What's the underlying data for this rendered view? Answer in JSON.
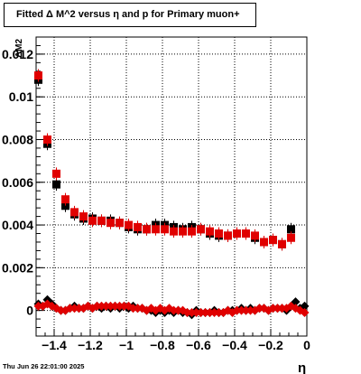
{
  "chart_data": {
    "type": "scatter",
    "title": "Fitted Δ M^2 versus η and p for Primary muon+",
    "xlabel": "η",
    "ylabel": "ΔM2",
    "xlim": [
      -1.5,
      0
    ],
    "ylim": [
      -0.0012,
      0.0128
    ],
    "x_ticks": [
      -1.4,
      -1.2,
      -1,
      -0.8,
      -0.6,
      -0.4,
      -0.2,
      0
    ],
    "x_tick_labels": [
      "−1.4",
      "−1.2",
      "−1",
      "−0.8",
      "−0.6",
      "−0.4",
      "−0.2",
      "0"
    ],
    "y_ticks": [
      0,
      0.002,
      0.004,
      0.006,
      0.008,
      0.01,
      0.012
    ],
    "y_tick_labels": [
      "0",
      "0.002",
      "0.004",
      "0.006",
      "0.008",
      "0.01",
      "0.012"
    ],
    "grid": true,
    "x": [
      -1.4875,
      -1.4625,
      -1.4375,
      -1.4125,
      -1.3875,
      -1.3625,
      -1.3375,
      -1.3125,
      -1.2875,
      -1.2625,
      -1.2375,
      -1.2125,
      -1.1875,
      -1.1625,
      -1.1375,
      -1.1125,
      -1.0875,
      -1.0625,
      -1.0375,
      -1.0125,
      -0.9875,
      -0.9625,
      -0.9375,
      -0.9125,
      -0.8875,
      -0.8625,
      -0.8375,
      -0.8125,
      -0.7875,
      -0.7625,
      -0.7375,
      -0.7125,
      -0.6875,
      -0.6625,
      -0.6375,
      -0.6125,
      -0.5875,
      -0.5625,
      -0.5375,
      -0.5125,
      -0.4875,
      -0.4625,
      -0.4375,
      -0.4125,
      -0.3875,
      -0.3625,
      -0.3375,
      -0.3125,
      -0.2875,
      -0.2625,
      -0.2375,
      -0.2125,
      -0.1875,
      -0.1625,
      -0.1375,
      -0.1125,
      -0.0875,
      -0.0625,
      -0.0375,
      -0.0125
    ],
    "series": [
      {
        "marker": "square",
        "color": "#000000",
        "y": [
          0.0108,
          null,
          0.0078,
          null,
          0.0059,
          null,
          0.0049,
          null,
          0.0045,
          null,
          0.0043,
          null,
          0.0043,
          null,
          0.0042,
          null,
          0.0042,
          null,
          0.0041,
          null,
          0.0039,
          null,
          0.0038,
          null,
          0.0038,
          null,
          0.004,
          null,
          0.004,
          null,
          0.0039,
          null,
          0.0038,
          null,
          0.0039,
          null,
          0.0038,
          null,
          0.0036,
          null,
          0.0035,
          null,
          0.0035,
          null,
          0.0036,
          null,
          0.0036,
          null,
          0.0034,
          null,
          0.0032,
          null,
          0.0033,
          null,
          0.0031,
          null,
          0.0038,
          null
        ]
      },
      {
        "marker": "square",
        "color": "#e00000",
        "y": [
          0.011,
          null,
          0.008,
          null,
          0.0064,
          null,
          0.0052,
          null,
          0.0046,
          null,
          0.0044,
          null,
          0.0042,
          null,
          0.0042,
          null,
          0.0041,
          null,
          0.0041,
          null,
          0.004,
          null,
          0.0039,
          null,
          0.0038,
          null,
          0.0038,
          null,
          0.0038,
          null,
          0.0037,
          null,
          0.0037,
          null,
          0.0037,
          null,
          0.0038,
          null,
          0.0037,
          null,
          0.0036,
          null,
          0.0035,
          null,
          0.0036,
          null,
          0.0036,
          null,
          0.0035,
          null,
          0.0032,
          null,
          0.0033,
          null,
          0.0031,
          null,
          0.0034,
          null
        ]
      },
      {
        "marker": "diamond",
        "color": "#000000",
        "y": [
          0.0003,
          0.0002,
          0.0005,
          0.0003,
          0.0001,
          0.0,
          0.0,
          0.0001,
          0.0002,
          0.0001,
          0.0001,
          0.0002,
          0.0001,
          0.0002,
          0.0001,
          0.0002,
          0.0001,
          0.0002,
          0.0001,
          0.0002,
          0.0001,
          0.0002,
          0.0001,
          0.0001,
          0.0,
          0.0,
          -0.0001,
          0.0,
          -0.0001,
          0.0,
          -0.0001,
          0.0,
          -0.0001,
          -0.0001,
          -0.0002,
          0.0,
          -0.0001,
          -0.0001,
          -0.0001,
          0.0,
          -0.0001,
          -0.0001,
          0.0,
          0.0,
          0.0,
          0.0001,
          0.0,
          0.0001,
          0.0,
          0.0001,
          0.0001,
          0.0,
          0.0001,
          0.0001,
          0.0001,
          0.0,
          0.0002,
          0.0004,
          0.0001,
          0.0002
        ]
      },
      {
        "marker": "diamond",
        "color": "#e00000",
        "y": [
          0.0002,
          0.0002,
          0.0003,
          0.0002,
          0.0001,
          0.0,
          0.0,
          0.0001,
          0.0001,
          0.0001,
          0.0001,
          0.0002,
          0.0001,
          0.0002,
          0.0002,
          0.0002,
          0.0002,
          0.0002,
          0.0002,
          0.0002,
          0.0002,
          0.0001,
          0.0001,
          0.0001,
          0.0,
          0.0001,
          0.0,
          0.0001,
          0.0,
          0.0001,
          0.0,
          0.0,
          0.0,
          -0.0001,
          -0.0001,
          -0.0001,
          -0.0001,
          -0.0001,
          -0.0001,
          -0.0001,
          -0.0001,
          -0.0001,
          0.0,
          -0.0001,
          0.0,
          0.0,
          0.0,
          0.0,
          0.0,
          0.0001,
          0.0001,
          0.0,
          0.0001,
          0.0001,
          0.0001,
          0.0001,
          0.0002,
          0.0001,
          0.0,
          -0.0001
        ]
      }
    ]
  },
  "footer": {
    "timestamp": "Thu Jun 26 22:01:00 2025"
  }
}
